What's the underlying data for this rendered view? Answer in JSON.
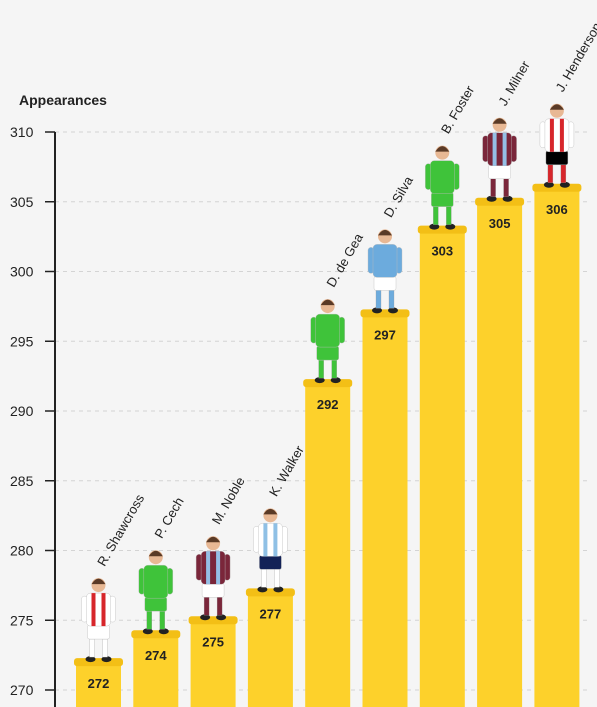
{
  "chart_data": {
    "type": "bar",
    "ylabel": "Appearances",
    "ylim": [
      270,
      310
    ],
    "yticks": [
      270,
      275,
      280,
      285,
      290,
      295,
      300,
      305,
      310
    ],
    "grid": true,
    "categories": [
      "R. Shawcross",
      "P. Cech",
      "M. Noble",
      "K. Walker",
      "D. de Gea",
      "D. Silva",
      "B. Foster",
      "J. Milner",
      "J. Henderson"
    ],
    "values": [
      272,
      274,
      275,
      277,
      292,
      297,
      303,
      305,
      306
    ],
    "kits": [
      {
        "shirt": "#ffffff",
        "stripe": "#d7262b",
        "shorts": "#ffffff",
        "socks": "#ffffff"
      },
      {
        "shirt": "#3fc33a",
        "stripe": "",
        "shorts": "#3fc33a",
        "socks": "#3fc33a"
      },
      {
        "shirt": "#7a263a",
        "stripe": "#95bfe5",
        "shorts": "#ffffff",
        "socks": "#7a263a"
      },
      {
        "shirt": "#ffffff",
        "stripe": "#8fc0e5",
        "shorts": "#132257",
        "socks": "#ffffff"
      },
      {
        "shirt": "#3fc33a",
        "stripe": "",
        "shorts": "#3fc33a",
        "socks": "#3fc33a"
      },
      {
        "shirt": "#6cabdd",
        "stripe": "",
        "shorts": "#ffffff",
        "socks": "#6cabdd"
      },
      {
        "shirt": "#3fc33a",
        "stripe": "",
        "shorts": "#3fc33a",
        "socks": "#3fc33a"
      },
      {
        "shirt": "#7a263a",
        "stripe": "#95bfe5",
        "shorts": "#ffffff",
        "socks": "#7a263a"
      },
      {
        "shirt": "#ffffff",
        "stripe": "#d7262b",
        "shorts": "#000000",
        "socks": "#d7262b"
      }
    ],
    "colors": {
      "bar": "#fdd12b",
      "bar_top": "#f3bf16",
      "axis": "#222222",
      "grid": "#d4d4d4",
      "skin": "#e8b894",
      "boot": "#222222"
    }
  }
}
